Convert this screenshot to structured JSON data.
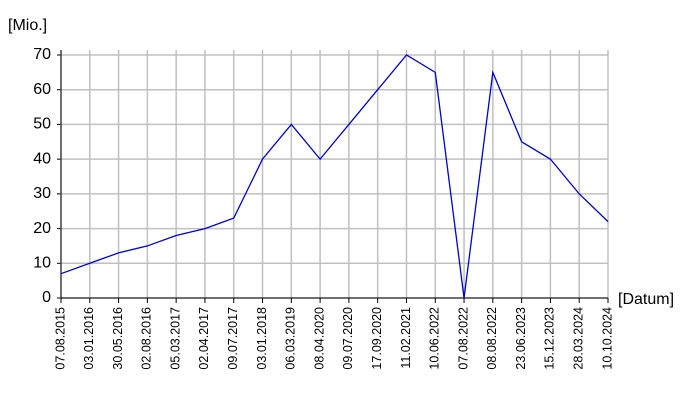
{
  "chart_data": {
    "type": "line",
    "ylabel": "[Mio.]",
    "xlabel": "[Datum]",
    "categories": [
      "07.08.2015",
      "03.01.2016",
      "30.05.2016",
      "02.08.2016",
      "05.03.2017",
      "02.04.2017",
      "09.07.2017",
      "03.01.2018",
      "06.03.2019",
      "08.04.2020",
      "09.07.2020",
      "17.09.2020",
      "11.02.2021",
      "10.06.2022",
      "07.08.2022",
      "08.08.2022",
      "23.06.2023",
      "15.12.2023",
      "28.03.2024",
      "10.10.2024"
    ],
    "values": [
      7,
      10,
      13,
      15,
      18,
      20,
      23,
      40,
      50,
      40,
      50,
      60,
      70,
      65,
      0,
      65,
      45,
      40,
      30,
      22
    ],
    "color": "#0000cc",
    "ylim": [
      0,
      70
    ],
    "yticks": [
      0,
      10,
      20,
      30,
      40,
      50,
      60,
      70
    ],
    "grid": true
  }
}
